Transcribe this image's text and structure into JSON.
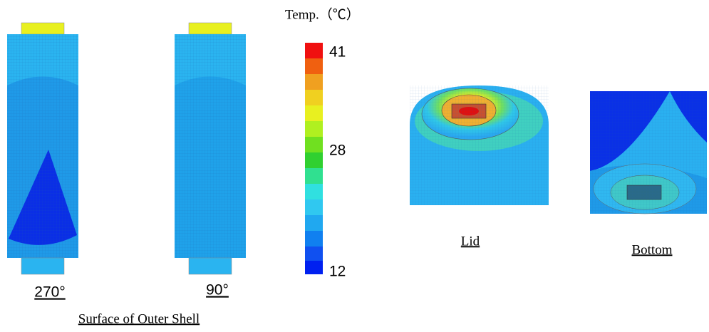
{
  "legend": {
    "title": "Temp.（℃）",
    "ticks": [
      41,
      28,
      12
    ]
  },
  "shell": {
    "views": [
      "270°",
      "90°"
    ],
    "caption": "Surface of Outer Shell"
  },
  "lid": {
    "caption": "Lid"
  },
  "bottom": {
    "caption": "Bottom"
  }
}
